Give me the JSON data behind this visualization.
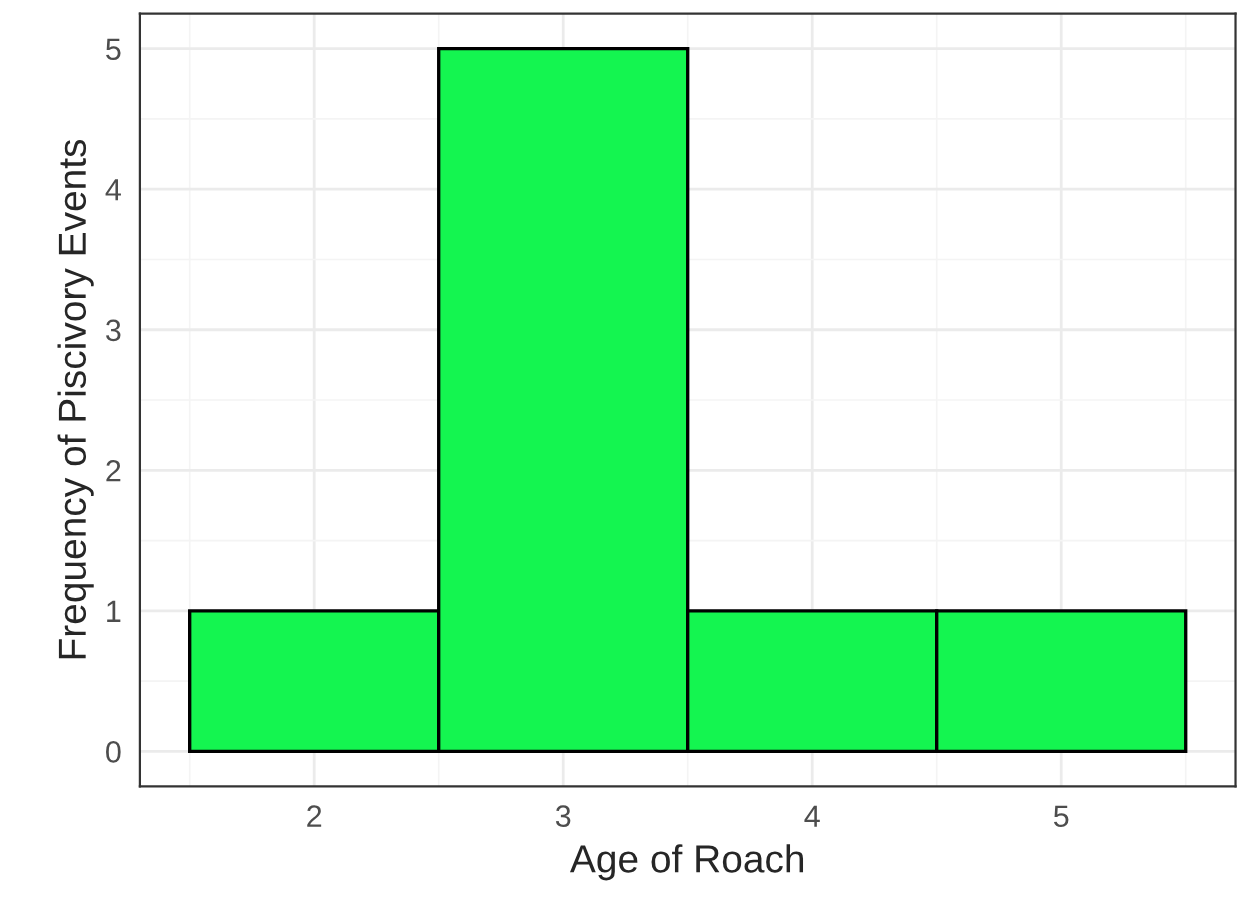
{
  "chart_data": {
    "type": "histogram",
    "xlabel": "Age of Roach",
    "ylabel": "Frequency of Piscivory Events",
    "bins": [
      1.5,
      2.5,
      3.5,
      4.5,
      5.5
    ],
    "values": [
      1,
      5,
      1,
      1
    ],
    "color": "#14f550",
    "xlim": [
      1.3,
      5.7
    ],
    "ylim": [
      -0.25,
      5.25
    ],
    "xticks": [
      2,
      3,
      4,
      5
    ],
    "yticks": [
      0,
      1,
      2,
      3,
      4,
      5
    ],
    "grid": true
  }
}
